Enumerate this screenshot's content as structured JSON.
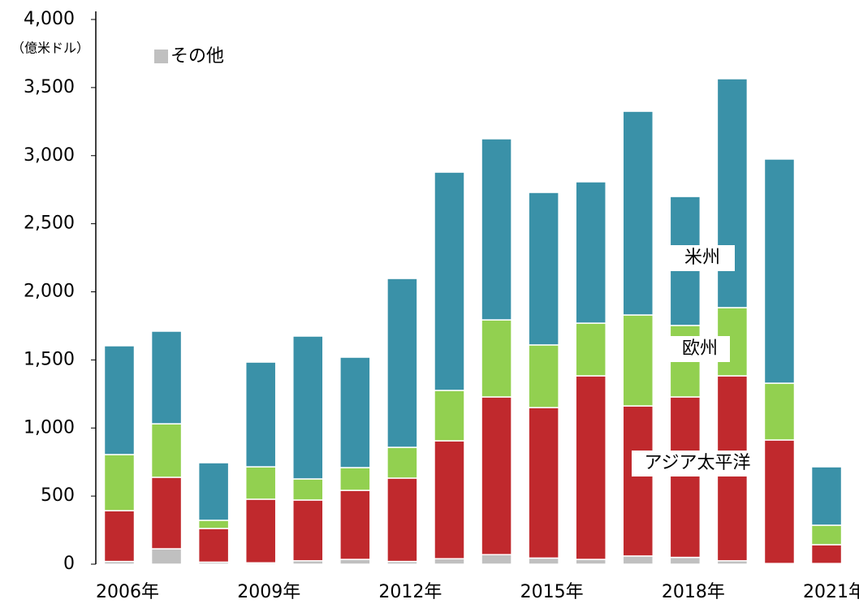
{
  "chart_data": {
    "type": "bar",
    "stacked": true,
    "y_unit_label": "（億米ドル）",
    "categories": [
      "2006年",
      null,
      null,
      "2009年",
      null,
      null,
      "2012年",
      null,
      null,
      "2015年",
      null,
      null,
      "2018年",
      null,
      null,
      "2021年"
    ],
    "series": [
      {
        "name": "その他",
        "color": "#c0c0c0",
        "values": [
          20,
          113,
          15,
          10,
          25,
          35,
          20,
          40,
          70,
          45,
          35,
          60,
          50,
          25,
          5,
          5
        ]
      },
      {
        "name": "アジア太平洋",
        "color": "#c0292d",
        "values": [
          373,
          525,
          247,
          467,
          446,
          507,
          612,
          866,
          1158,
          1105,
          1348,
          1102,
          1178,
          1358,
          907,
          138
        ]
      },
      {
        "name": "欧州",
        "color": "#92d050",
        "values": [
          412,
          393,
          60,
          238,
          155,
          167,
          226,
          370,
          566,
          460,
          387,
          668,
          525,
          501,
          417,
          143
        ]
      },
      {
        "name": "米州",
        "color": "#3a91a8",
        "values": [
          799,
          680,
          423,
          769,
          1049,
          811,
          1240,
          1603,
          1330,
          1120,
          1038,
          1496,
          947,
          1681,
          1646,
          429
        ]
      }
    ],
    "ylim": [
      0,
      4000
    ],
    "yticks": [
      0,
      {
        "value": 500,
        "label": "500"
      },
      {
        "value": 1000,
        "label": "1,000"
      },
      {
        "value": 1500,
        "label": "1,500"
      },
      {
        "value": 2000,
        "label": "2,000"
      },
      {
        "value": 2500,
        "label": "2,500"
      },
      {
        "value": 3000,
        "label": "3,000"
      },
      {
        "value": 3500,
        "label": "3,500"
      },
      {
        "value": 4000,
        "label": "4,000"
      }
    ],
    "grid": false
  }
}
